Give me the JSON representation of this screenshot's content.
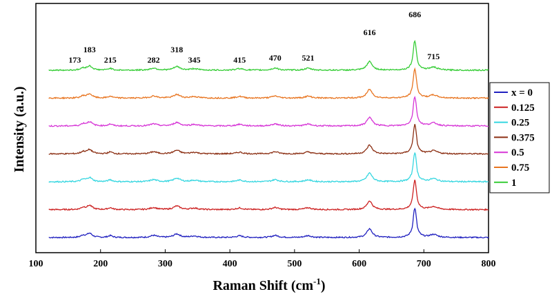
{
  "chart_data": {
    "type": "line",
    "xlabel": "Raman Shift (cm",
    "xlabel_superscript": "-1",
    "xlabel_suffix": ")",
    "ylabel": "Intensity (a.u.)",
    "xlim": [
      100,
      800
    ],
    "x_ticks": [
      100,
      200,
      300,
      400,
      500,
      600,
      700,
      800
    ],
    "grid": false,
    "legend_position": "right",
    "peaks": [
      {
        "position": 173,
        "label": "173",
        "amp": 0.1,
        "width": 4
      },
      {
        "position": 183,
        "label": "183",
        "amp": 0.2,
        "width": 5
      },
      {
        "position": 215,
        "label": "215",
        "amp": 0.09,
        "width": 4
      },
      {
        "position": 282,
        "label": "282",
        "amp": 0.1,
        "width": 6
      },
      {
        "position": 318,
        "label": "318",
        "amp": 0.17,
        "width": 6
      },
      {
        "position": 345,
        "label": "345",
        "amp": 0.07,
        "width": 7
      },
      {
        "position": 415,
        "label": "415",
        "amp": 0.08,
        "width": 6
      },
      {
        "position": 470,
        "label": "470",
        "amp": 0.1,
        "width": 6
      },
      {
        "position": 521,
        "label": "521",
        "amp": 0.09,
        "width": 6
      },
      {
        "position": 616,
        "label": "616",
        "amp": 0.42,
        "width": 5
      },
      {
        "position": 686,
        "label": "686",
        "amp": 1.0,
        "width": 4
      },
      {
        "position": 715,
        "label": "715",
        "amp": 0.14,
        "width": 7
      }
    ],
    "series": [
      {
        "name": "x = 0",
        "color": "#1f1fbf"
      },
      {
        "name": "0.125",
        "color": "#cc1f1f"
      },
      {
        "name": "0.25",
        "color": "#33d6e0"
      },
      {
        "name": "0.375",
        "color": "#8b2e12"
      },
      {
        "name": "0.5",
        "color": "#d633d6"
      },
      {
        "name": "0.75",
        "color": "#e8741f"
      },
      {
        "name": "1",
        "color": "#33cc33"
      }
    ]
  }
}
